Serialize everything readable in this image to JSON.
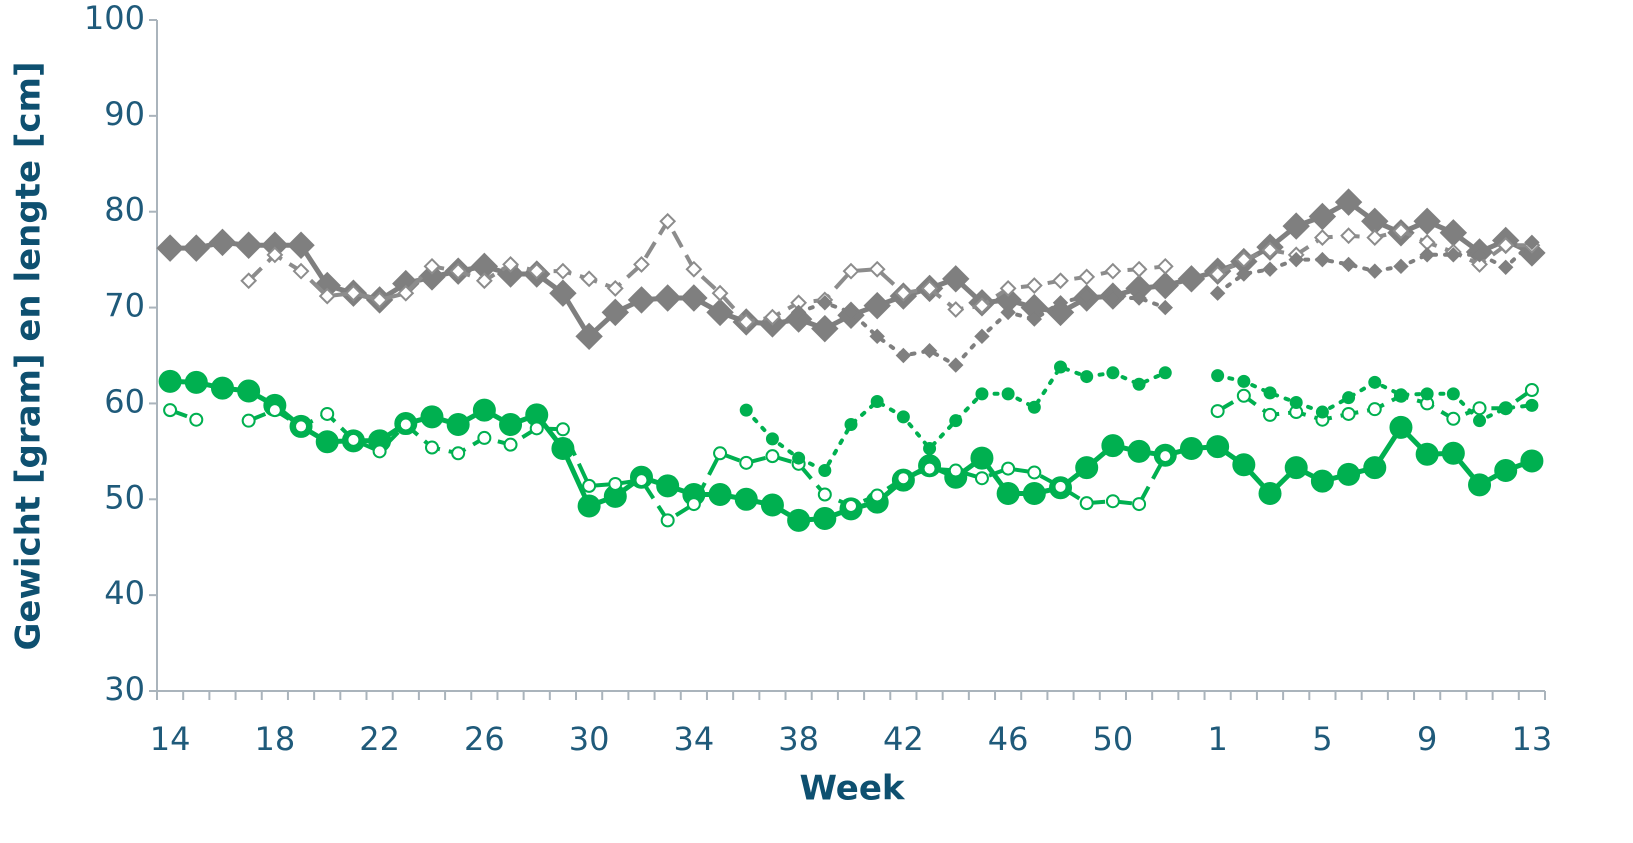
{
  "chart_data": {
    "type": "line",
    "x_label": "Week",
    "y_label": "Gewicht [gram] en lengte [cm]",
    "categories": [
      "14",
      null,
      null,
      null,
      "18",
      null,
      null,
      null,
      "22",
      null,
      null,
      null,
      "26",
      null,
      null,
      null,
      "30",
      null,
      null,
      null,
      "34",
      null,
      null,
      null,
      "38",
      null,
      null,
      null,
      "42",
      null,
      null,
      null,
      "46",
      null,
      null,
      null,
      "50",
      null,
      null,
      null,
      "1",
      null,
      null,
      null,
      "5",
      null,
      null,
      null,
      "9",
      null,
      null,
      null,
      "13"
    ],
    "ylim": [
      30,
      100
    ],
    "yticks": [
      30,
      40,
      50,
      60,
      70,
      80,
      90,
      100
    ],
    "series": [
      {
        "color": "#7f7f7f",
        "dash": "solid",
        "marker": "diamond",
        "marker_fill": "solid",
        "marker_size": 13,
        "values": [
          76.2,
          76.2,
          76.8,
          76.5,
          76.5,
          76.5,
          72.3,
          71.5,
          70.8,
          72.5,
          73.2,
          73.8,
          74.3,
          73.5,
          73.5,
          71.5,
          67,
          69.5,
          70.8,
          71,
          71,
          69.5,
          68.5,
          68.3,
          68.8,
          67.8,
          69.2,
          70.2,
          71.2,
          72,
          73,
          70.5,
          70.8,
          70,
          69.5,
          71,
          71.2,
          72,
          72.3,
          73,
          73.8,
          74.8,
          76.3,
          78.5,
          79.5,
          81,
          79,
          77.8,
          79,
          77.8,
          75.8,
          77,
          75.7
        ]
      },
      {
        "color": "#8c8c8c",
        "dash": "dashed",
        "marker": "diamond",
        "marker_fill": "open",
        "marker_size": 7,
        "values": [
          null,
          null,
          null,
          72.8,
          75.5,
          73.8,
          71.2,
          71.5,
          70.8,
          71.5,
          74.3,
          73.8,
          72.8,
          74.5,
          73.8,
          73.8,
          73,
          72,
          74.5,
          79,
          74,
          71.5,
          68.5,
          69,
          70.5,
          70.8,
          73.8,
          74,
          71.5,
          72,
          69.8,
          70.2,
          72,
          72.3,
          72.8,
          73.2,
          73.8,
          74,
          74.3,
          null,
          73.5,
          75,
          76,
          75.5,
          77.3,
          77.5,
          77.3,
          78,
          76.8,
          75.8,
          74.5,
          76.5,
          76.5
        ]
      },
      {
        "color": "#7f7f7f",
        "dash": "dotted",
        "marker": "diamond",
        "marker_fill": "solid",
        "marker_size": 7,
        "values": [
          null,
          null,
          null,
          null,
          null,
          null,
          null,
          null,
          null,
          null,
          null,
          null,
          null,
          null,
          null,
          null,
          null,
          null,
          null,
          null,
          null,
          null,
          null,
          null,
          69.5,
          70.5,
          69.5,
          67,
          65,
          65.5,
          64,
          67,
          69.5,
          68.8,
          70.5,
          71.2,
          71,
          71,
          70,
          null,
          71.5,
          73.5,
          74,
          75,
          75,
          74.5,
          73.8,
          74.3,
          75.5,
          75.5,
          75.5,
          74.2,
          76.8
        ]
      },
      {
        "color": "#00b050",
        "dash": "solid",
        "marker": "circle",
        "marker_fill": "solid",
        "marker_size": 11,
        "values": [
          62.3,
          62.2,
          61.6,
          61.3,
          59.8,
          57.6,
          56,
          56.1,
          56.1,
          57.9,
          58.6,
          57.8,
          59.3,
          57.8,
          58.8,
          55.3,
          49.3,
          50.3,
          52.3,
          51.4,
          50.5,
          50.5,
          50,
          49.4,
          47.8,
          48,
          49,
          49.7,
          52,
          53.5,
          52.3,
          54.3,
          50.6,
          50.6,
          51.2,
          53.3,
          55.6,
          55,
          54.6,
          55.3,
          55.5,
          53.6,
          50.6,
          53.3,
          51.9,
          52.6,
          53.3,
          57.5,
          54.7,
          54.8,
          51.5,
          53,
          54
        ]
      },
      {
        "color": "#00b050",
        "dash": "dashed",
        "marker": "circle",
        "marker_fill": "open",
        "marker_size": 6,
        "values": [
          59.3,
          58.3,
          null,
          58.2,
          59.3,
          57.6,
          58.9,
          56.2,
          55,
          57.8,
          55.4,
          54.8,
          56.4,
          55.7,
          57.4,
          57.3,
          51.4,
          51.6,
          52,
          47.8,
          49.5,
          54.8,
          53.8,
          54.5,
          53.7,
          50.5,
          49.3,
          50.4,
          52.2,
          53.2,
          53,
          52.2,
          53.2,
          52.8,
          51.3,
          49.6,
          49.8,
          49.5,
          54.5,
          null,
          59.2,
          60.8,
          58.8,
          59.1,
          58.3,
          58.9,
          59.4,
          60.8,
          60,
          58.4,
          59.5,
          59.5,
          61.4
        ]
      },
      {
        "color": "#00b050",
        "dash": "dotted",
        "marker": "circle",
        "marker_fill": "solid",
        "marker_size": 6,
        "values": [
          null,
          null,
          null,
          null,
          null,
          null,
          null,
          null,
          null,
          null,
          null,
          null,
          null,
          null,
          null,
          null,
          null,
          null,
          null,
          null,
          null,
          null,
          59.3,
          56.3,
          54.3,
          53,
          57.8,
          60.2,
          58.6,
          55.3,
          58.2,
          61,
          61,
          59.6,
          63.8,
          62.8,
          63.2,
          62,
          63.2,
          null,
          62.9,
          62.3,
          61.1,
          60.1,
          59.1,
          60.6,
          62.2,
          60.9,
          61,
          61,
          58.2,
          59.5,
          59.8
        ]
      }
    ]
  }
}
